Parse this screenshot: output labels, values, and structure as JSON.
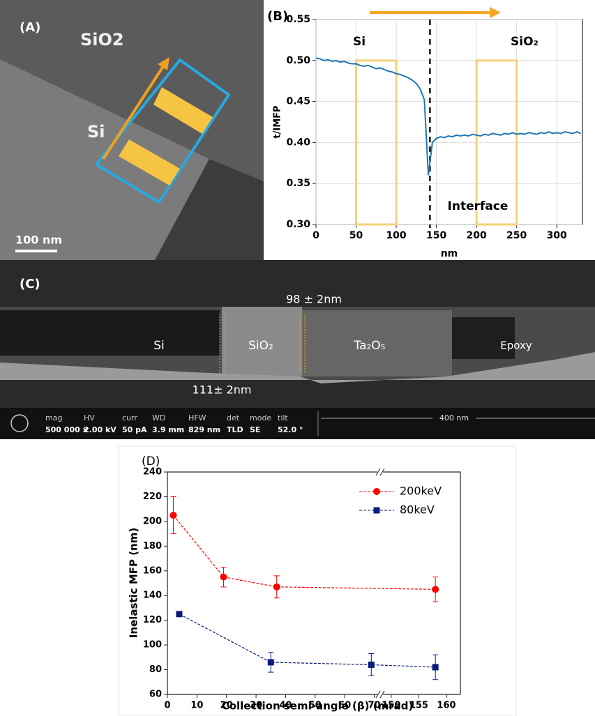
{
  "panel_a": {
    "label": "(A)",
    "material_top": "SiO2",
    "material_bottom": "Si",
    "scale_bar": "100 nm"
  },
  "panel_c": {
    "label": "(C)",
    "thickness_top": "98 ± 2nm",
    "thickness_bottom": "111± 2nm",
    "layers": [
      "Si",
      "SiO₂",
      "Ta₂O₅",
      "Epoxy"
    ],
    "status": [
      {
        "label": "mag",
        "value": "500 000 x"
      },
      {
        "label": "HV",
        "value": "2.00 kV"
      },
      {
        "label": "curr",
        "value": "50 pA"
      },
      {
        "label": "WD",
        "value": "3.9 mm"
      },
      {
        "label": "HFW",
        "value": "829 nm"
      },
      {
        "label": "det",
        "value": "TLD"
      },
      {
        "label": "mode",
        "value": "SE"
      },
      {
        "label": "tilt",
        "value": "52.0 °"
      }
    ],
    "scale_bar": "400 nm"
  },
  "chart_data": [
    {
      "type": "line",
      "panel_label": "(B)",
      "x_label": "nm",
      "y_label": "t/IMFP",
      "annotations": [
        "Si",
        "SiO₂",
        "Interface"
      ],
      "x": [
        0,
        5,
        10,
        15,
        20,
        25,
        30,
        35,
        40,
        45,
        50,
        55,
        60,
        65,
        70,
        75,
        80,
        85,
        90,
        95,
        100,
        105,
        110,
        115,
        120,
        125,
        130,
        135,
        140,
        145,
        150,
        155,
        160,
        165,
        170,
        175,
        180,
        185,
        190,
        195,
        200,
        205,
        210,
        215,
        220,
        225,
        230,
        235,
        240,
        245,
        250,
        255,
        260,
        265,
        270,
        275,
        280,
        285,
        290,
        295,
        300,
        305,
        310,
        315,
        320,
        325,
        330
      ],
      "values": [
        0.503,
        0.502,
        0.5,
        0.501,
        0.499,
        0.5,
        0.498,
        0.499,
        0.497,
        0.496,
        0.496,
        0.494,
        0.493,
        0.494,
        0.492,
        0.49,
        0.491,
        0.489,
        0.487,
        0.486,
        0.484,
        0.483,
        0.481,
        0.479,
        0.476,
        0.472,
        0.465,
        0.452,
        0.36,
        0.4,
        0.405,
        0.407,
        0.406,
        0.408,
        0.407,
        0.409,
        0.408,
        0.409,
        0.408,
        0.41,
        0.409,
        0.408,
        0.41,
        0.409,
        0.411,
        0.41,
        0.409,
        0.411,
        0.41,
        0.412,
        0.41,
        0.411,
        0.41,
        0.412,
        0.411,
        0.41,
        0.412,
        0.411,
        0.413,
        0.411,
        0.412,
        0.411,
        0.413,
        0.412,
        0.411,
        0.413,
        0.411
      ],
      "color": "#1f77b4",
      "regions": [
        {
          "x": [
            50,
            100
          ],
          "y": [
            0.3,
            0.5
          ]
        },
        {
          "x": [
            200,
            250
          ],
          "y": [
            0.3,
            0.5
          ]
        }
      ],
      "interface_x": 142,
      "xlim": [
        0,
        332
      ],
      "ylim": [
        0.3,
        0.55
      ],
      "xticks": [
        0,
        50,
        100,
        150,
        200,
        250,
        300
      ],
      "yticks": [
        {
          "value": 0.3,
          "label": "0.30"
        },
        0.35,
        {
          "value": 0.4,
          "label": "0.40"
        },
        0.45,
        {
          "value": 0.5,
          "label": "0.50"
        },
        0.55
      ],
      "grid": true
    },
    {
      "type": "line",
      "panel_label": "(D)",
      "x_label": "Collection semi-angle (β) (mrad)",
      "y_label": "Inelastic MFP (nm)",
      "series": [
        {
          "name": "200keV",
          "color": "#ff0000",
          "marker": "circle",
          "x": [
            2,
            19,
            37,
            158
          ],
          "values": [
            205,
            155,
            147,
            145
          ],
          "errors": [
            15,
            8,
            9,
            10
          ]
        },
        {
          "name": "80keV",
          "color": "#0a1a7a",
          "marker": "square",
          "x": [
            4,
            35,
            69,
            158
          ],
          "values": [
            125,
            86,
            84,
            82
          ],
          "errors": [
            2,
            8,
            9,
            10
          ]
        }
      ],
      "xlim": [
        0,
        160
      ],
      "xbreak": [
        72,
        148
      ],
      "ylim": [
        60,
        240
      ],
      "xticks": [
        0,
        10,
        20,
        30,
        40,
        50,
        60,
        70,
        150,
        155,
        160
      ],
      "yticks": [
        60,
        80,
        100,
        120,
        140,
        160,
        180,
        200,
        220,
        240
      ],
      "legend": "upper right"
    }
  ]
}
